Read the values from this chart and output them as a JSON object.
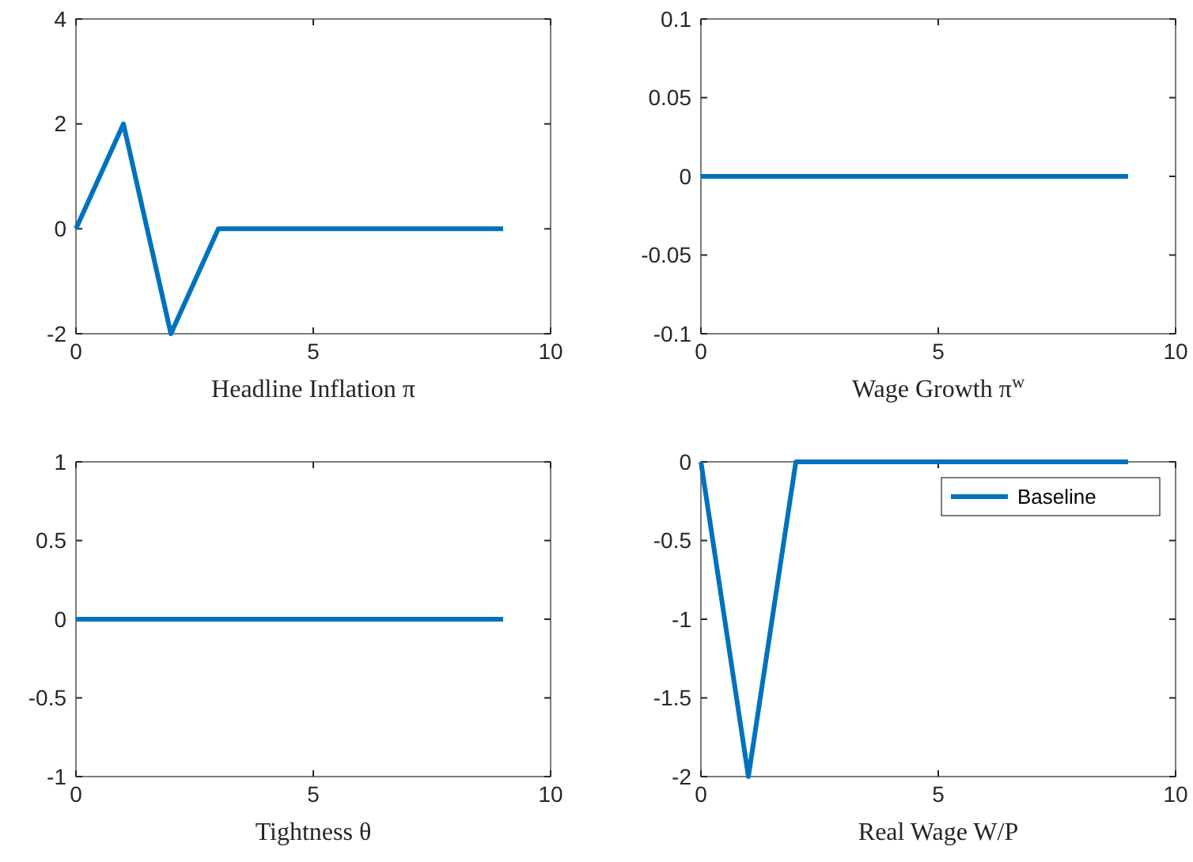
{
  "chart_data": [
    {
      "type": "line",
      "xlabel": "Headline Inflation π",
      "x": [
        0,
        1,
        2,
        3,
        4,
        5,
        6,
        7,
        8,
        9
      ],
      "series": [
        {
          "color": "#0072bd",
          "values": [
            0,
            2,
            -2,
            0,
            0,
            0,
            0,
            0,
            0,
            0
          ]
        }
      ],
      "xlim": [
        0,
        10
      ],
      "xticks": [
        0,
        5,
        10
      ],
      "ylim": [
        -2,
        4
      ],
      "yticks": [
        -2,
        0,
        2,
        4
      ],
      "grid": false,
      "legend": false
    },
    {
      "type": "line",
      "xlabel": "Wage Growth π$^{w}$",
      "x": [
        0,
        1,
        2,
        3,
        4,
        5,
        6,
        7,
        8,
        9
      ],
      "series": [
        {
          "color": "#0072bd",
          "values": [
            0,
            0,
            0,
            0,
            0,
            0,
            0,
            0,
            0,
            0
          ]
        }
      ],
      "xlim": [
        0,
        10
      ],
      "xticks": [
        0,
        5,
        10
      ],
      "ylim": [
        -0.1,
        0.1
      ],
      "yticks": [
        -0.1,
        -0.05,
        0,
        0.05,
        0.1
      ],
      "grid": false,
      "legend": false
    },
    {
      "type": "line",
      "xlabel": "Tightness θ",
      "x": [
        0,
        1,
        2,
        3,
        4,
        5,
        6,
        7,
        8,
        9
      ],
      "series": [
        {
          "color": "#0072bd",
          "values": [
            0,
            0,
            0,
            0,
            0,
            0,
            0,
            0,
            0,
            0
          ]
        }
      ],
      "xlim": [
        0,
        10
      ],
      "xticks": [
        0,
        5,
        10
      ],
      "ylim": [
        -1,
        1
      ],
      "yticks": [
        -1,
        -0.5,
        0,
        0.5,
        1
      ],
      "grid": false,
      "legend": false
    },
    {
      "type": "line",
      "xlabel": "Real Wage W/P",
      "x": [
        0,
        1,
        2,
        3,
        4,
        5,
        6,
        7,
        8,
        9
      ],
      "series": [
        {
          "name": "Baseline",
          "color": "#0072bd",
          "values": [
            0,
            -2,
            0,
            0,
            0,
            0,
            0,
            0,
            0,
            0
          ]
        }
      ],
      "xlim": [
        0,
        10
      ],
      "xticks": [
        0,
        5,
        10
      ],
      "ylim": [
        -2,
        0
      ],
      "yticks": [
        -2,
        -1.5,
        -1,
        -0.5,
        0
      ],
      "grid": false,
      "legend": "top right"
    }
  ]
}
